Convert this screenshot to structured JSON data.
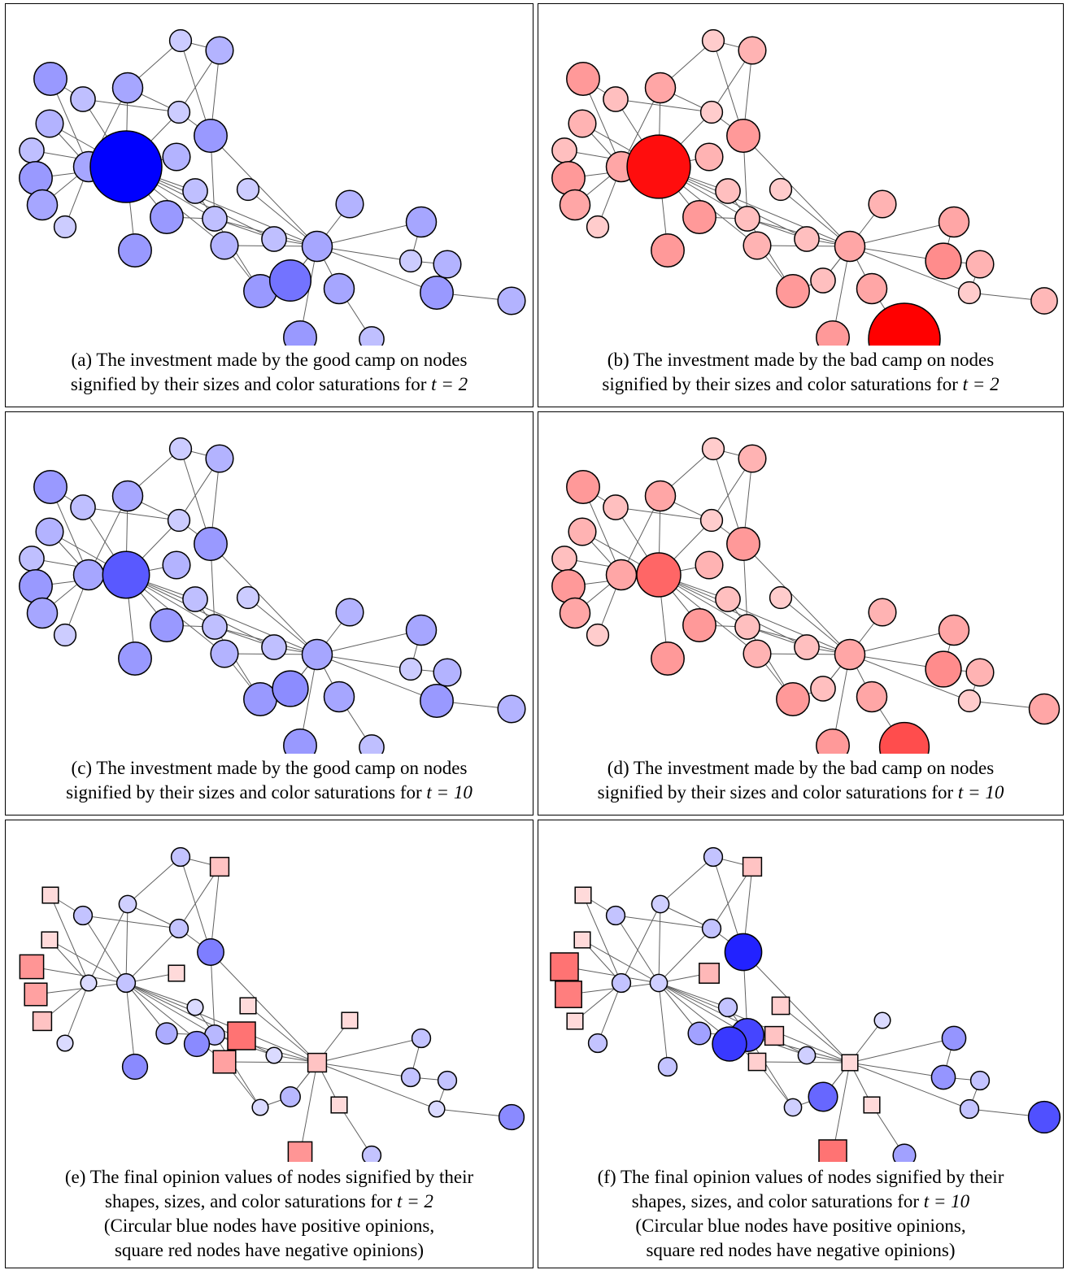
{
  "panels": [
    {
      "id": "a",
      "mode": "inv",
      "hue": "blue",
      "big": [
        [
          10,
          1.0
        ],
        [
          28,
          0.45
        ],
        [
          30,
          0.3
        ]
      ],
      "caption": [
        "(a) The investment made by the good camp on nodes",
        "signified by their sizes and color saturations for",
        "t = 2"
      ]
    },
    {
      "id": "b",
      "mode": "inv",
      "hue": "red",
      "big": [
        [
          10,
          0.85
        ],
        [
          33,
          1.0
        ],
        [
          25,
          0.35
        ],
        [
          31,
          0.18
        ]
      ],
      "caption": [
        "(b) The investment made by the bad camp on nodes",
        "signified by their sizes and color saturations for",
        "t = 2"
      ]
    },
    {
      "id": "c",
      "mode": "inv",
      "hue": "blue",
      "big": [
        [
          10,
          0.55
        ],
        [
          28,
          0.35
        ],
        [
          30,
          0.3
        ]
      ],
      "caption": [
        "(c) The investment made by the good camp on nodes",
        "signified by their sizes and color saturations for",
        "t = 10"
      ]
    },
    {
      "id": "d",
      "mode": "inv",
      "hue": "red",
      "big": [
        [
          10,
          0.5
        ],
        [
          33,
          0.6
        ],
        [
          25,
          0.35
        ],
        [
          31,
          0.25
        ]
      ],
      "caption": [
        "(d) The investment made by the bad camp on nodes",
        "signified by their sizes and color saturations for",
        "t = 10"
      ]
    },
    {
      "id": "e",
      "mode": "op",
      "opinions": [
        0.15,
        -0.15,
        -0.05,
        0.15,
        0.1,
        0.15,
        -0.05,
        0.45,
        -0.35,
        0.05,
        0.15,
        -0.05,
        -0.3,
        0.05,
        -0.15,
        -0.05,
        -0.05,
        0.25,
        0.2,
        0.15,
        0.05,
        -0.3,
        0.4,
        0.05,
        -0.15,
        0.15,
        0.15,
        0.05,
        0.2,
        -0.05,
        0.05,
        0.4,
        -0.35,
        0.15,
        0.4,
        -0.5
      ],
      "caption": [
        "(e) The final opinion values of nodes signified by their",
        "shapes, sizes, and color saturations for",
        "t = 2",
        "(Circular blue nodes have positive opinions,",
        "square red nodes have negative opinions)"
      ]
    },
    {
      "id": "f",
      "mode": "op",
      "opinions": [
        0.15,
        -0.15,
        -0.05,
        0.15,
        0.1,
        0.15,
        -0.05,
        0.85,
        -0.5,
        0.15,
        0.1,
        -0.2,
        -0.45,
        0.15,
        -0.05,
        -0.1,
        0.05,
        0.3,
        0.7,
        0.35,
        0.15,
        -0.1,
        0.15,
        0.1,
        -0.05,
        0.35,
        0.15,
        0.1,
        0.55,
        -0.05,
        0.15,
        0.65,
        -0.5,
        0.3,
        0.75,
        -0.15
      ],
      "caption": [
        "(f) The final opinion values of nodes signified by their",
        "shapes, sizes, and color saturations for",
        "t = 10",
        "(Circular blue nodes have positive opinions,",
        "square red nodes have negative opinions)"
      ]
    }
  ],
  "colors": {
    "blue": "#0000ff",
    "red": "#ff0000",
    "edge": "#606060",
    "outline": "#000000"
  }
}
